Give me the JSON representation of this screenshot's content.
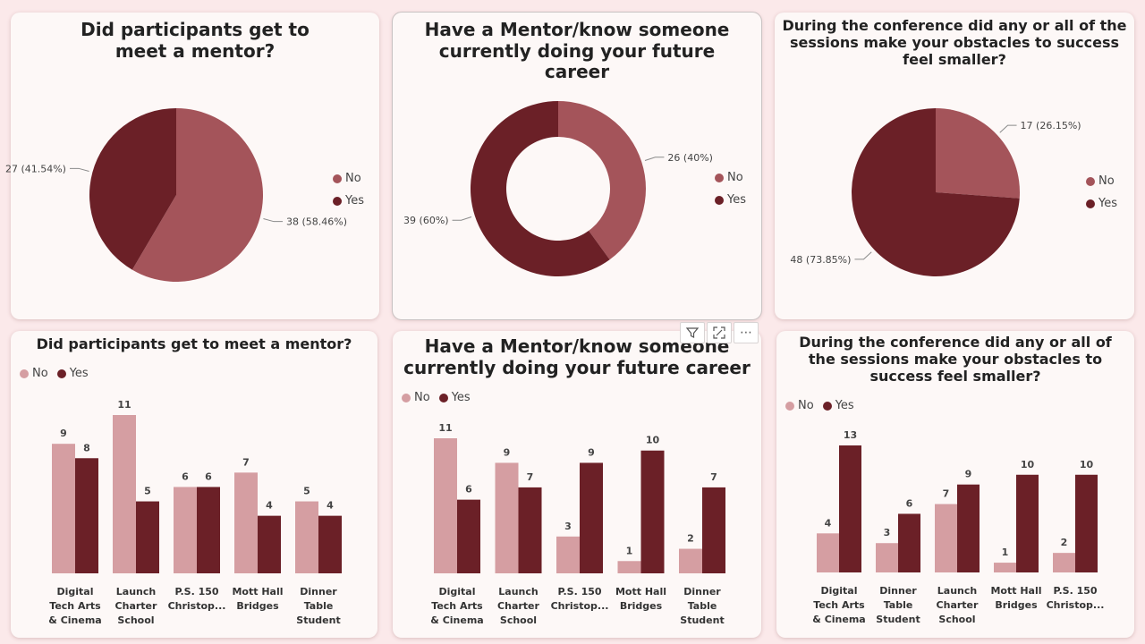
{
  "colors": {
    "pie_no": "#a4545a",
    "pie_yes": "#6b2027",
    "bar_no": "#d59ea2",
    "bar_yes": "#6b2027",
    "leader": "#8a8a8a"
  },
  "legend_labels": {
    "no": "No",
    "yes": "Yes"
  },
  "toolbar": {
    "filter_icon": "filter-icon",
    "focus_icon": "focus-mode-icon",
    "more_icon": "more-options-icon",
    "more_glyph": "⋯"
  },
  "chart_data": [
    {
      "type": "pie",
      "title": "Did participants get to meet a mentor?",
      "slices": [
        {
          "name": "No",
          "value": 38,
          "label": "38 (58.46%)"
        },
        {
          "name": "Yes",
          "value": 27,
          "label": "27 (41.54%)"
        }
      ],
      "legend": "right"
    },
    {
      "type": "donut",
      "title": "Have a Mentor/know someone currently doing your future career",
      "slices": [
        {
          "name": "No",
          "value": 26,
          "label": "26 (40%)"
        },
        {
          "name": "Yes",
          "value": 39,
          "label": "39 (60%)"
        }
      ],
      "legend": "right"
    },
    {
      "type": "pie",
      "title": "During the conference did any or all of the sessions make your obstacles to success feel smaller?",
      "slices": [
        {
          "name": "No",
          "value": 17,
          "label": "17 (26.15%)"
        },
        {
          "name": "Yes",
          "value": 48,
          "label": "48 (73.85%)"
        }
      ],
      "legend": "right"
    },
    {
      "type": "bar",
      "title": "Did participants get to meet a mentor?",
      "categories": [
        [
          "Digital",
          "Tech Arts",
          "& Cinema"
        ],
        [
          "Launch",
          "Charter",
          "School"
        ],
        [
          "P.S. 150",
          "Christop..."
        ],
        [
          "Mott Hall",
          "Bridges"
        ],
        [
          "Dinner",
          "Table",
          "Student"
        ]
      ],
      "series": [
        {
          "name": "No",
          "values": [
            9,
            11,
            6,
            7,
            5
          ]
        },
        {
          "name": "Yes",
          "values": [
            8,
            5,
            6,
            4,
            4
          ]
        }
      ],
      "ylim": [
        0,
        11
      ],
      "legend": "top-left"
    },
    {
      "type": "bar",
      "title": "Have a Mentor/know someone currently doing your future career",
      "categories": [
        [
          "Digital",
          "Tech Arts",
          "& Cinema"
        ],
        [
          "Launch",
          "Charter",
          "School"
        ],
        [
          "P.S. 150",
          "Christop..."
        ],
        [
          "Mott Hall",
          "Bridges"
        ],
        [
          "Dinner",
          "Table",
          "Student"
        ]
      ],
      "series": [
        {
          "name": "No",
          "values": [
            11,
            9,
            3,
            1,
            2
          ]
        },
        {
          "name": "Yes",
          "values": [
            6,
            7,
            9,
            10,
            7
          ]
        }
      ],
      "ylim": [
        0,
        11
      ],
      "legend": "top-left"
    },
    {
      "type": "bar",
      "title": "During the conference did any or all of the sessions make your obstacles to success feel smaller?",
      "categories": [
        [
          "Digital",
          "Tech Arts",
          "& Cinema"
        ],
        [
          "Dinner",
          "Table",
          "Student"
        ],
        [
          "Launch",
          "Charter",
          "School"
        ],
        [
          "Mott Hall",
          "Bridges"
        ],
        [
          "P.S. 150",
          "Christop..."
        ]
      ],
      "series": [
        {
          "name": "No",
          "values": [
            4,
            3,
            7,
            1,
            2
          ]
        },
        {
          "name": "Yes",
          "values": [
            13,
            6,
            9,
            10,
            10
          ]
        }
      ],
      "ylim": [
        0,
        13
      ],
      "legend": "top-left"
    }
  ]
}
